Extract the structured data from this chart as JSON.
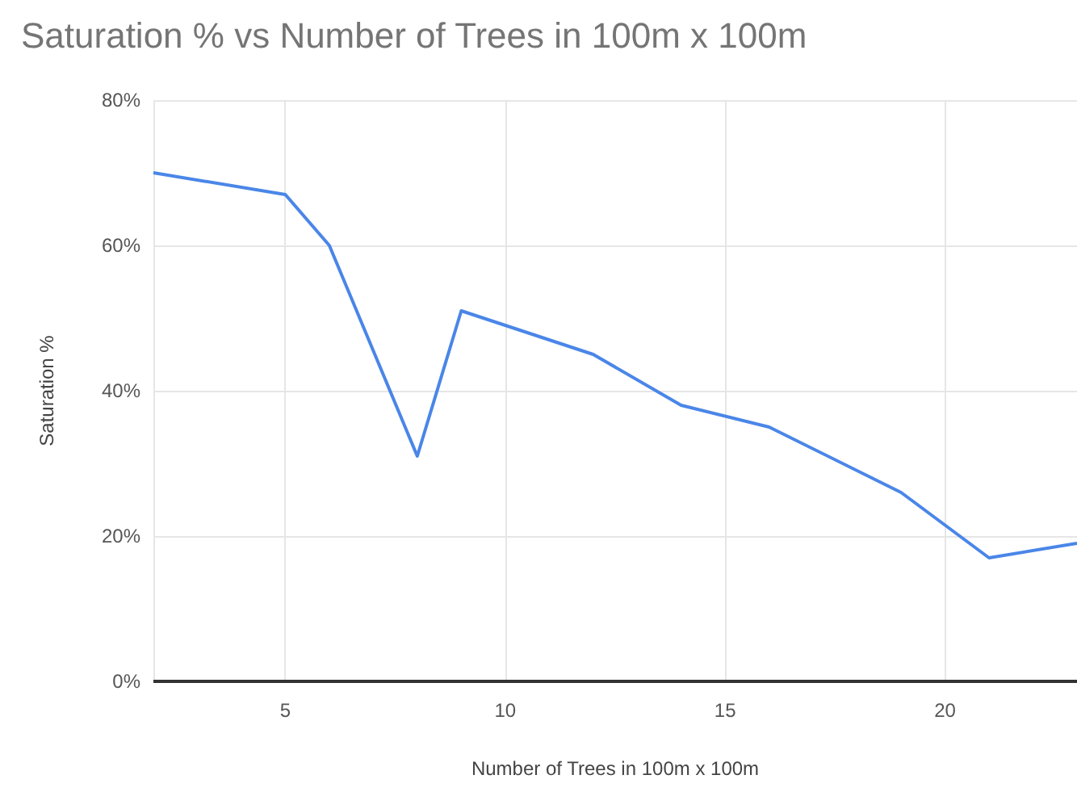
{
  "chart_data": {
    "type": "line",
    "title": "Saturation % vs Number of Trees in 100m x 100m",
    "xlabel": "Number of Trees in 100m x 100m",
    "ylabel": "Saturation %",
    "x": [
      2,
      5,
      6,
      8,
      9,
      12,
      14,
      16,
      19,
      21,
      23
    ],
    "series": [
      {
        "color": "#4a86e8",
        "values": [
          70,
          67,
          60,
          31,
          51,
          45,
          38,
          35,
          26,
          17,
          19
        ]
      }
    ],
    "xlim": [
      2,
      23
    ],
    "xticks": [
      5,
      10,
      15,
      20
    ],
    "ylim": [
      0,
      80
    ],
    "yticks": [
      {
        "value": 0,
        "label": "0%"
      },
      {
        "value": 20,
        "label": "20%"
      },
      {
        "value": 40,
        "label": "40%"
      },
      {
        "value": 60,
        "label": "60%"
      },
      {
        "value": 80,
        "label": "80%"
      }
    ],
    "grid": true,
    "marker": "none",
    "line_style": "solid"
  }
}
